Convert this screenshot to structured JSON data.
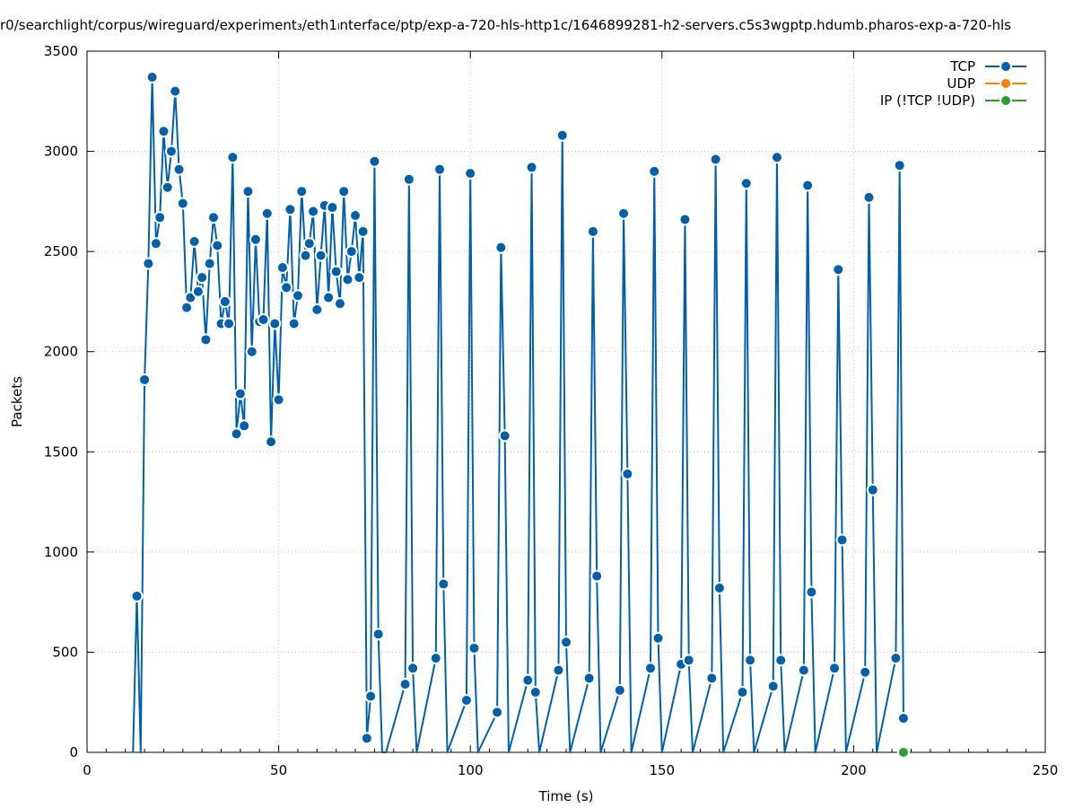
{
  "page": {
    "title": "r0/searchlight/corpus/wireguard/experiment₃/eth1ₗnterface/ptp/exp-a-720-hls-http1c/1646899281-h2-servers.c5s3wgptp.hdumb.pharos-exp-a-720-hls"
  },
  "chart_data": {
    "type": "line",
    "title": "r0/searchlight/corpus/wireguard/experiment₃/eth1ₗnterface/ptp/exp-a-720-hls-http1c/1646899281-h2-servers.c5s3wgptp.hdumb.pharos-exp-a-720-hls",
    "xlabel": "Time (s)",
    "ylabel": "Packets",
    "xlim": [
      0,
      250
    ],
    "ylim": [
      0,
      3500
    ],
    "xticks": [
      0,
      50,
      100,
      150,
      200,
      250
    ],
    "yticks": [
      0,
      500,
      1000,
      1500,
      2000,
      2500,
      3000,
      3500
    ],
    "grid": true,
    "legend_position": "top-right",
    "colors": {
      "TCP": "#0060ad",
      "UDP": "#ff8000",
      "IP": "#2ca02c"
    },
    "series": [
      {
        "name": "TCP",
        "x": [
          12,
          13,
          14,
          15,
          16,
          17,
          18,
          19,
          20,
          21,
          22,
          23,
          24,
          25,
          26,
          27,
          28,
          29,
          30,
          31,
          32,
          33,
          34,
          35,
          36,
          37,
          38,
          39,
          40,
          41,
          42,
          43,
          44,
          45,
          46,
          47,
          48,
          49,
          50,
          51,
          52,
          53,
          54,
          55,
          56,
          57,
          58,
          59,
          60,
          61,
          62,
          63,
          64,
          65,
          66,
          67,
          68,
          69,
          70,
          71,
          72,
          73,
          74,
          75,
          76,
          77,
          78,
          83,
          84,
          85,
          86,
          91,
          92,
          93,
          94,
          99,
          100,
          101,
          102,
          107,
          108,
          109,
          110,
          115,
          116,
          117,
          118,
          123,
          124,
          125,
          126,
          131,
          132,
          133,
          134,
          139,
          140,
          141,
          142,
          147,
          148,
          149,
          150,
          155,
          156,
          157,
          158,
          163,
          164,
          165,
          166,
          171,
          172,
          173,
          174,
          179,
          180,
          181,
          182,
          187,
          188,
          189,
          190,
          195,
          196,
          197,
          198,
          203,
          204,
          205,
          206,
          211,
          212,
          213
        ],
        "values": [
          0,
          780,
          0,
          1860,
          2440,
          3370,
          2540,
          2670,
          3100,
          2820,
          3000,
          3300,
          2910,
          2740,
          2220,
          2270,
          2550,
          2300,
          2370,
          2060,
          2440,
          2670,
          2530,
          2140,
          2250,
          2140,
          2970,
          1590,
          1790,
          1630,
          2800,
          2000,
          2560,
          2150,
          2160,
          2690,
          1550,
          2140,
          1760,
          2420,
          2320,
          2710,
          2140,
          2280,
          2800,
          2480,
          2540,
          2700,
          2210,
          2480,
          2730,
          2270,
          2720,
          2400,
          2240,
          2800,
          2360,
          2500,
          2680,
          2370,
          2600,
          70,
          280,
          2950,
          590,
          0,
          0,
          340,
          2860,
          420,
          0,
          470,
          2910,
          840,
          0,
          260,
          2890,
          520,
          0,
          200,
          2520,
          1580,
          0,
          360,
          2920,
          300,
          0,
          410,
          3080,
          550,
          0,
          370,
          2600,
          880,
          0,
          310,
          2690,
          1390,
          0,
          420,
          2900,
          570,
          0,
          440,
          2660,
          460,
          0,
          370,
          2960,
          820,
          0,
          300,
          2840,
          460,
          0,
          330,
          2970,
          460,
          0,
          410,
          2830,
          800,
          0,
          420,
          2410,
          1060,
          0,
          400,
          2770,
          1310,
          0,
          470,
          2930,
          170
        ]
      },
      {
        "name": "UDP",
        "x": [],
        "values": []
      },
      {
        "name": "IP (!TCP  !UDP)",
        "x": [
          213
        ],
        "values": [
          0
        ]
      }
    ]
  }
}
